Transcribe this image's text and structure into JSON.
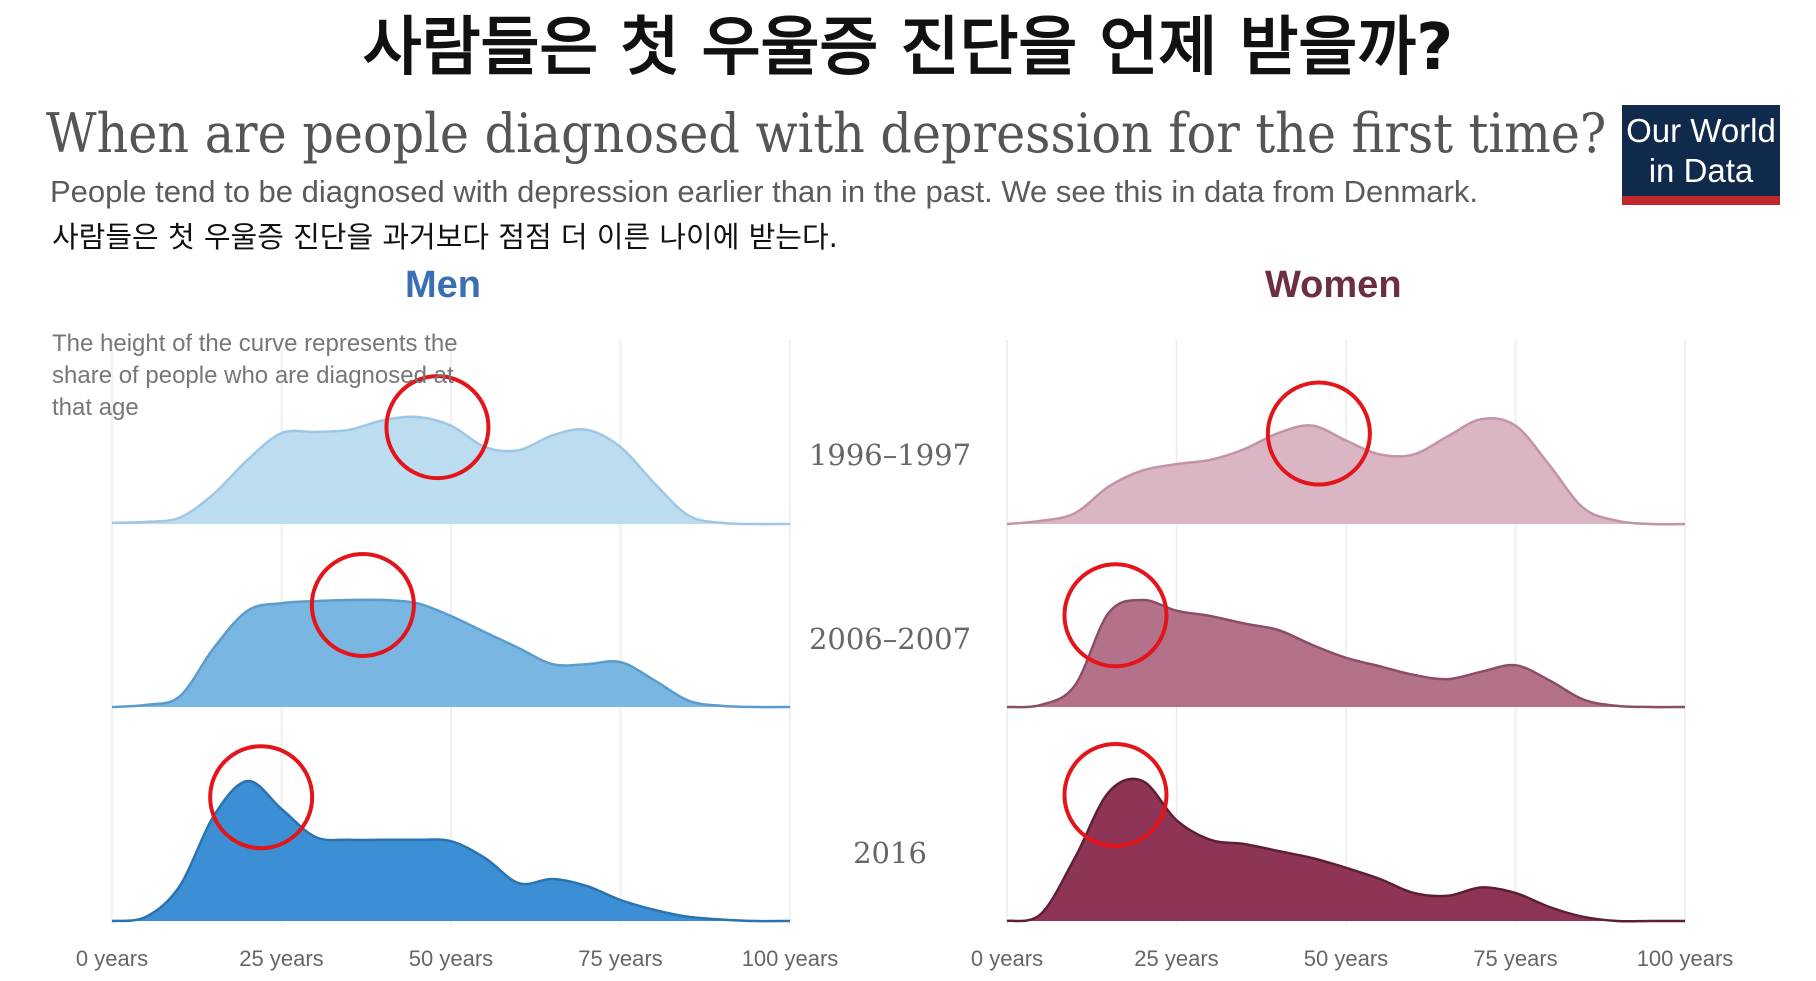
{
  "header": {
    "korean_title": "사람들은 첫 우울증 진단을 언제 받을까?",
    "title": "When are people diagnosed with depression for the first time?",
    "subtitle": "People tend to be diagnosed with depression earlier than in the past. We see this in data from Denmark.",
    "korean_subtitle": "사람들은 첫 우울증 진단을 과거보다 점점 더 이른 나이에 받는다."
  },
  "logo": {
    "line1": "Our World",
    "line2": "in Data",
    "bg_color": "#0f2a4a",
    "accent_color": "#c0282d"
  },
  "annotation": "The height of the curve represents the share of people who are diagnosed at that age",
  "chart_data": {
    "type": "area",
    "subtype": "ridgeline",
    "x_unit": "years",
    "xlim": [
      0,
      100
    ],
    "x_ticks": [
      0,
      25,
      50,
      75,
      100
    ],
    "x_tick_labels": [
      "0 years",
      "25 years",
      "50 years",
      "75 years",
      "100 years"
    ],
    "y_meaning": "relative share of people diagnosed at that age (normalized, approximate)",
    "periods": [
      "1996–1997",
      "2006–2007",
      "2016"
    ],
    "ages": [
      0,
      5,
      10,
      15,
      20,
      25,
      30,
      35,
      40,
      45,
      50,
      55,
      60,
      65,
      70,
      75,
      80,
      85,
      90,
      95,
      100
    ],
    "panels": [
      {
        "name": "Men",
        "color": "#3a6fb5",
        "series": [
          {
            "period": "1996–1997",
            "fill": "#bcdcf0",
            "stroke": "#9fc6e6",
            "peak_age_marked": 48,
            "values": [
              0.01,
              0.02,
              0.06,
              0.28,
              0.6,
              0.85,
              0.86,
              0.88,
              0.97,
              1.0,
              0.92,
              0.72,
              0.69,
              0.83,
              0.88,
              0.72,
              0.38,
              0.08,
              0.01,
              0.0,
              0.0
            ]
          },
          {
            "period": "2006–2007",
            "fill": "#7ab6e2",
            "stroke": "#5a9ccf",
            "peak_age_marked": 37,
            "values": [
              0.0,
              0.02,
              0.1,
              0.55,
              0.9,
              0.97,
              0.99,
              1.0,
              1.0,
              0.97,
              0.85,
              0.7,
              0.55,
              0.4,
              0.4,
              0.42,
              0.25,
              0.06,
              0.01,
              0.0,
              0.0
            ]
          },
          {
            "period": "2016",
            "fill": "#3d8fd5",
            "stroke": "#2b72b0",
            "peak_age_marked": 22,
            "values": [
              0.0,
              0.03,
              0.25,
              0.75,
              1.0,
              0.8,
              0.6,
              0.58,
              0.58,
              0.58,
              0.57,
              0.45,
              0.27,
              0.3,
              0.25,
              0.15,
              0.08,
              0.03,
              0.01,
              0.0,
              0.0
            ]
          }
        ]
      },
      {
        "name": "Women",
        "color": "#6b2e45",
        "series": [
          {
            "period": "1996–1997",
            "fill": "#dab5c3",
            "stroke": "#c493a6",
            "peak_age_marked": 46,
            "values": [
              0.0,
              0.03,
              0.1,
              0.35,
              0.5,
              0.56,
              0.6,
              0.7,
              0.85,
              0.92,
              0.78,
              0.65,
              0.65,
              0.82,
              0.98,
              0.92,
              0.55,
              0.15,
              0.03,
              0.0,
              0.0
            ]
          },
          {
            "period": "2006–2007",
            "fill": "#b3718a",
            "stroke": "#8c4d66",
            "peak_age_marked": 16,
            "values": [
              0.0,
              0.02,
              0.2,
              0.88,
              1.0,
              0.9,
              0.85,
              0.78,
              0.72,
              0.58,
              0.46,
              0.38,
              0.3,
              0.26,
              0.33,
              0.39,
              0.25,
              0.07,
              0.01,
              0.0,
              0.0
            ]
          },
          {
            "period": "2016",
            "fill": "#8e3456",
            "stroke": "#5e1e36",
            "peak_age_marked": 16,
            "values": [
              0.0,
              0.05,
              0.45,
              0.92,
              1.0,
              0.72,
              0.58,
              0.55,
              0.5,
              0.45,
              0.38,
              0.3,
              0.2,
              0.18,
              0.24,
              0.2,
              0.1,
              0.03,
              0.0,
              0.0,
              0.0
            ]
          }
        ]
      }
    ],
    "highlight": {
      "description": "red circles mark the peak age in each curve",
      "color": "#e3151a"
    }
  }
}
